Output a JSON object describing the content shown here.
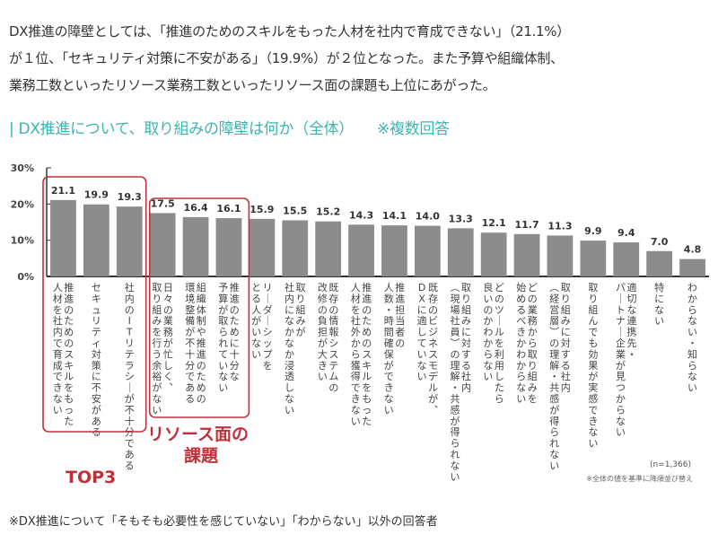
{
  "intro": {
    "line1": "DX推進の障壁としては、「推進のためのスキルをもった人材を社内で育成できない」（21.1%）",
    "line2": "が１位、「セキュリティ対策に不安がある」（19.9%）が２位となった。また予算や組織体制、",
    "line3": "業務工数といったリソース業務工数といったリソース面の課題も上位にあがった。"
  },
  "chart_title": "| DX推進について、取り組みの障壁は何か（全体）",
  "chart_title_note": "※複数回答",
  "annotations": {
    "top3": "TOP3",
    "resource_line1": "リソース面の",
    "resource_line2": "課題",
    "accent_color": "#c0303a"
  },
  "sample_size": "(n=1,366)",
  "sort_note": "※全体の値を基準に降順並び替え",
  "footnote": "※DX推進について「そもそも必要性を感じていない」「わからない」以外の回答者",
  "chart_data": {
    "type": "bar",
    "title": "DX推進について、取り組みの障壁は何か（全体）",
    "xlabel": "",
    "ylabel": "",
    "ylim": [
      0,
      30
    ],
    "yticks": [
      "0%",
      "10%",
      "20%",
      "30%"
    ],
    "bar_color": "#8c8c8c",
    "grid": false,
    "categories": [
      [
        "推進のためのスキルをもった",
        "人材を社内で育成できない"
      ],
      [
        "セキュリティ対策に不安がある"
      ],
      [
        "社内のITリテラシーが不十分である"
      ],
      [
        "日々の業務が忙しく、",
        "取り組みを行う余裕がない"
      ],
      [
        "組織体制や推進のための",
        "環境整備が不十分である"
      ],
      [
        "推進のために十分な",
        "予算が取られていない"
      ],
      [
        "リーダーシップを",
        "とる人がいない"
      ],
      [
        "取り組みが",
        "社内になかなか浸透しない"
      ],
      [
        "既存の情報システムの",
        "改修の負担が大きい"
      ],
      [
        "推進のためのスキルをもった",
        "人材を社外から獲得できない"
      ],
      [
        "推進担当者の",
        "人数・時間確保ができない"
      ],
      [
        "既存のビジネスモデルが、",
        "DXに適していない"
      ],
      [
        "取り組みに対する社内",
        "（現場社員）の理解・共感が得られない"
      ],
      [
        "どのツールを利用したら",
        "良いのかわからない"
      ],
      [
        "どの業務から取り組みを",
        "始めるべきかわからない"
      ],
      [
        "取り組みに対する社内",
        "（経営層）の理解・共感が得られない"
      ],
      [
        "取り組んでも効果が実感できない"
      ],
      [
        "適切な連携先・",
        "パートナー企業が見つからない"
      ],
      [
        "特にない"
      ],
      [
        "わからない・知らない"
      ]
    ],
    "values": [
      21.1,
      19.9,
      19.3,
      17.5,
      16.4,
      16.1,
      15.9,
      15.5,
      15.2,
      14.3,
      14.1,
      14.0,
      13.3,
      12.1,
      11.7,
      11.3,
      9.9,
      9.4,
      7.0,
      4.8
    ],
    "value_labels": [
      "21.1",
      "19.9",
      "19.3",
      "17.5",
      "16.4",
      "16.1",
      "15.9",
      "15.5",
      "15.2",
      "14.3",
      "14.1",
      "14.0",
      "13.3",
      "12.1",
      "11.7",
      "11.3",
      "9.9",
      "9.4",
      "7.0",
      "4.8"
    ]
  }
}
